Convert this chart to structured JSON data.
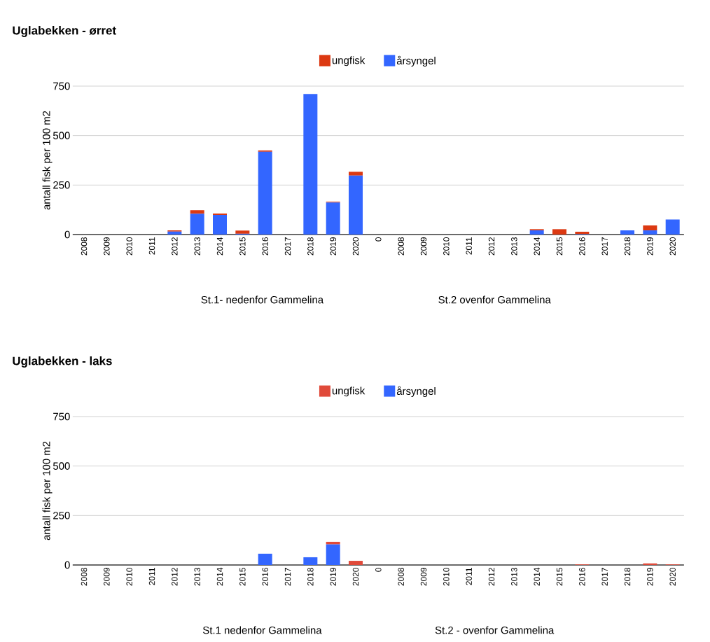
{
  "chart_data": [
    {
      "type": "bar",
      "stacked": true,
      "title": "Uglabekken - ørret",
      "ylabel": "antall fisk per 100 m2",
      "categories": [
        "2008",
        "2009",
        "2010",
        "2011",
        "2012",
        "2013",
        "2014",
        "2015",
        "2016",
        "2017",
        "2018",
        "2019",
        "2020",
        "0",
        "2008",
        "2009",
        "2010",
        "2011",
        "2012",
        "2013",
        "2014",
        "2015",
        "2016",
        "2017",
        "2018",
        "2019",
        "2020"
      ],
      "series": [
        {
          "name": "årsyngel",
          "color": "#3366ff",
          "values": [
            0,
            0,
            0,
            0,
            15,
            105,
            99,
            4,
            418,
            0,
            710,
            162,
            298,
            0,
            0,
            0,
            0,
            0,
            0,
            0,
            21,
            0,
            2,
            0,
            21,
            21,
            76
          ]
        },
        {
          "name": "ungfisk",
          "color": "#dc3912",
          "values": [
            0,
            0,
            0,
            0,
            6,
            18,
            7,
            16,
            7,
            0,
            0,
            4,
            19,
            0,
            0,
            0,
            0,
            0,
            0,
            0,
            6,
            27,
            12,
            0,
            0,
            25,
            0
          ]
        }
      ],
      "ylim": [
        0,
        750
      ],
      "yticks": [
        0,
        250,
        500,
        750
      ],
      "grid": "y",
      "legend": "top",
      "annotations": [
        "St.1- nedenfor Gammelina",
        "St.2 ovenfor Gammelina"
      ]
    },
    {
      "type": "bar",
      "stacked": true,
      "title": "Uglabekken - laks",
      "ylabel": "antall fisk per 100 m2",
      "categories": [
        "2008",
        "2009",
        "2010",
        "2011",
        "2012",
        "2013",
        "2014",
        "2015",
        "2016",
        "2017",
        "2018",
        "2019",
        "2020",
        "0",
        "2008",
        "2009",
        "2010",
        "2011",
        "2012",
        "2013",
        "2014",
        "2015",
        "2016",
        "2017",
        "2018",
        "2019",
        "2020"
      ],
      "series": [
        {
          "name": "årsyngel",
          "color": "#3366ff",
          "values": [
            0,
            0,
            0,
            0,
            0,
            0,
            0,
            0,
            57,
            0,
            39,
            104,
            0,
            0,
            0,
            0,
            0,
            0,
            0,
            0,
            0,
            0,
            0,
            0,
            0,
            0,
            0
          ]
        },
        {
          "name": "ungfisk",
          "color": "#e04a3a",
          "values": [
            0,
            0,
            0,
            0,
            0,
            0,
            0,
            0,
            0,
            0,
            0,
            13,
            21,
            0,
            0,
            0,
            0,
            0,
            0,
            0,
            0,
            0,
            3,
            0,
            0,
            8,
            3
          ]
        }
      ],
      "ylim": [
        0,
        750
      ],
      "yticks": [
        0,
        250,
        500,
        750
      ],
      "grid": "y",
      "legend": "top",
      "annotations": [
        "St.1  nedenfor Gammelina",
        "St.2 - ovenfor Gammelina"
      ]
    }
  ]
}
